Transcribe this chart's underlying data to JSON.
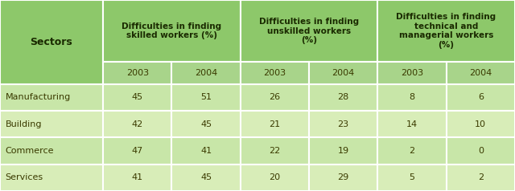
{
  "col_headers": [
    "Sectors",
    "Difficulties in finding\nskilled workers (%)",
    "Difficulties in finding\nunskilled workers\n(%)",
    "Difficulties in finding\ntechnical and\nmanagerial workers\n(%)"
  ],
  "sub_headers": [
    "2003",
    "2004",
    "2003",
    "2004",
    "2003",
    "2004"
  ],
  "rows": [
    [
      "Manufacturing",
      "45",
      "51",
      "26",
      "28",
      "8",
      "6"
    ],
    [
      "Building",
      "42",
      "45",
      "21",
      "23",
      "14",
      "10"
    ],
    [
      "Commerce",
      "47",
      "41",
      "22",
      "19",
      "2",
      "0"
    ],
    [
      "Services",
      "41",
      "45",
      "20",
      "29",
      "5",
      "2"
    ]
  ],
  "header_bg": "#8DC86A",
  "subheader_bg": "#A8D48A",
  "row_bg_light": "#C8E6A8",
  "row_bg_lighter": "#D8EDB8",
  "border_color": "#FFFFFF",
  "text_color": "#3A3A00",
  "header_text_color": "#1A2A00",
  "figsize": [
    6.4,
    2.38
  ],
  "dpi": 100
}
